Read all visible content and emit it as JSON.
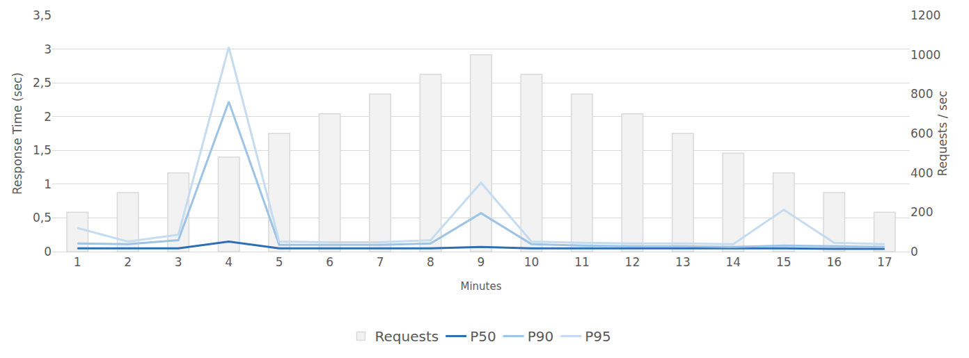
{
  "chart_data": {
    "type": "bar",
    "x_label": "Minutes",
    "y_label": "Response Time (sec)",
    "y2_label": "Requests / sec",
    "categories": [
      "1",
      "2",
      "3",
      "4",
      "5",
      "6",
      "7",
      "8",
      "9",
      "10",
      "11",
      "12",
      "13",
      "14",
      "15",
      "16",
      "17"
    ],
    "ylim": [
      0,
      3.5
    ],
    "yticks": [
      0,
      {
        "value": 0.5,
        "label": "0,5"
      },
      1,
      {
        "value": 1.5,
        "label": "1,5"
      },
      2,
      {
        "value": 2.5,
        "label": "2,5"
      },
      3,
      {
        "value": 3.5,
        "label": "3,5"
      }
    ],
    "y2lim": [
      0,
      1200
    ],
    "y2ticks": [
      0,
      200,
      400,
      600,
      800,
      1000,
      1200
    ],
    "grid": true,
    "legend": "bottom",
    "series": [
      {
        "name": "Requests",
        "type": "bar",
        "axis": "y2",
        "color": "#f2f2f2",
        "values": [
          200,
          300,
          400,
          480,
          600,
          700,
          800,
          900,
          1000,
          900,
          800,
          700,
          600,
          500,
          400,
          300,
          200
        ]
      },
      {
        "name": "P50",
        "type": "line",
        "color": "#2e6fb3",
        "values": [
          0.05,
          0.05,
          0.05,
          0.15,
          0.05,
          0.05,
          0.05,
          0.05,
          0.07,
          0.05,
          0.05,
          0.05,
          0.05,
          0.05,
          0.05,
          0.04,
          0.04
        ]
      },
      {
        "name": "P90",
        "type": "line",
        "color": "#9dc3e6",
        "values": [
          0.12,
          0.11,
          0.17,
          2.22,
          0.1,
          0.1,
          0.1,
          0.12,
          0.57,
          0.11,
          0.09,
          0.08,
          0.08,
          0.07,
          0.09,
          0.08,
          0.07
        ]
      },
      {
        "name": "P95",
        "type": "line",
        "color": "#c5dcf0",
        "values": [
          0.35,
          0.15,
          0.25,
          3.03,
          0.15,
          0.14,
          0.14,
          0.17,
          1.02,
          0.15,
          0.13,
          0.12,
          0.12,
          0.11,
          0.62,
          0.13,
          0.11
        ]
      }
    ]
  }
}
